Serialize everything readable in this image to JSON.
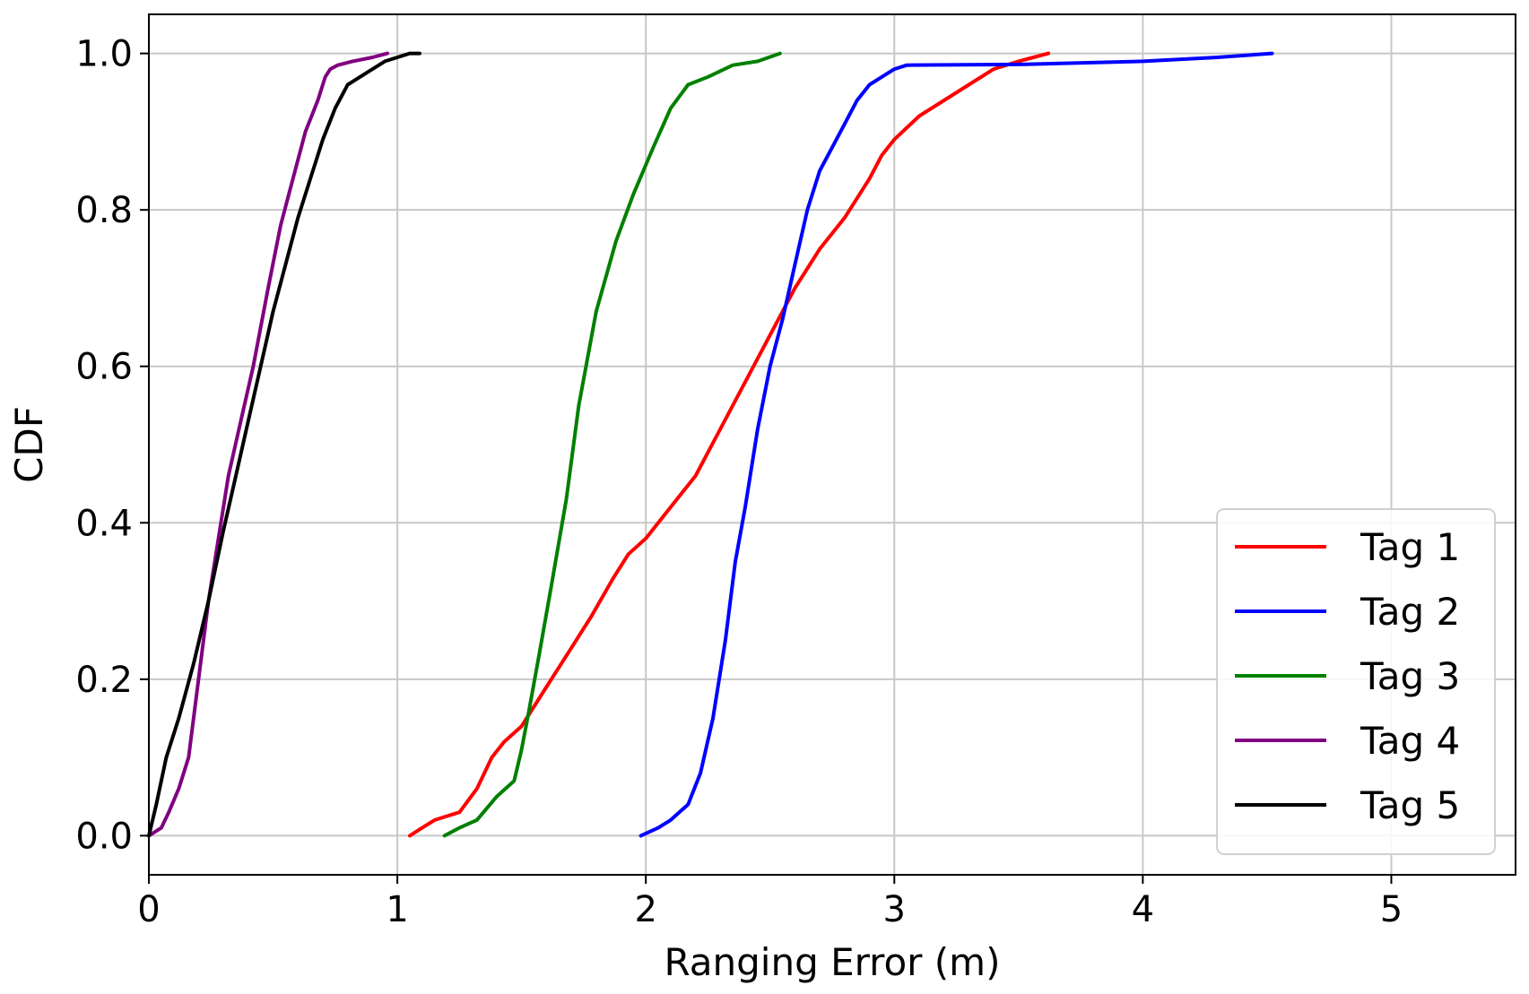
{
  "chart_data": {
    "type": "line",
    "title": "",
    "xlabel": "Ranging Error (m)",
    "ylabel": "CDF",
    "xlim": [
      0,
      5.5
    ],
    "ylim": [
      -0.05,
      1.05
    ],
    "xticks": [
      0,
      1,
      2,
      3,
      4,
      5
    ],
    "yticks": [
      0.0,
      0.2,
      0.4,
      0.6,
      0.8,
      1.0
    ],
    "xtick_labels": [
      "0",
      "1",
      "2",
      "3",
      "4",
      "5"
    ],
    "ytick_labels": [
      "0.0",
      "0.2",
      "0.4",
      "0.6",
      "0.8",
      "1.0"
    ],
    "grid": true,
    "legend_position": "lower-right",
    "series": [
      {
        "name": "Tag 1",
        "color": "#ff0000",
        "x": [
          1.05,
          1.1,
          1.15,
          1.25,
          1.32,
          1.38,
          1.43,
          1.5,
          1.6,
          1.7,
          1.78,
          1.87,
          1.93,
          2.0,
          2.1,
          2.2,
          2.3,
          2.4,
          2.5,
          2.6,
          2.7,
          2.8,
          2.9,
          2.95,
          3.0,
          3.1,
          3.2,
          3.3,
          3.4,
          3.5,
          3.62
        ],
        "y": [
          0.0,
          0.01,
          0.02,
          0.03,
          0.06,
          0.1,
          0.12,
          0.14,
          0.19,
          0.24,
          0.28,
          0.33,
          0.36,
          0.38,
          0.42,
          0.46,
          0.52,
          0.58,
          0.64,
          0.7,
          0.75,
          0.79,
          0.84,
          0.87,
          0.89,
          0.92,
          0.94,
          0.96,
          0.98,
          0.99,
          1.0
        ]
      },
      {
        "name": "Tag 2",
        "color": "#0000ff",
        "x": [
          1.98,
          2.05,
          2.1,
          2.17,
          2.22,
          2.27,
          2.32,
          2.36,
          2.4,
          2.45,
          2.5,
          2.55,
          2.6,
          2.65,
          2.7,
          2.75,
          2.8,
          2.85,
          2.9,
          2.95,
          3.0,
          3.05,
          3.5,
          4.0,
          4.3,
          4.52
        ],
        "y": [
          0.0,
          0.01,
          0.02,
          0.04,
          0.08,
          0.15,
          0.25,
          0.35,
          0.42,
          0.52,
          0.6,
          0.66,
          0.73,
          0.8,
          0.85,
          0.88,
          0.91,
          0.94,
          0.96,
          0.97,
          0.98,
          0.985,
          0.986,
          0.99,
          0.995,
          1.0
        ]
      },
      {
        "name": "Tag 3",
        "color": "#008000",
        "x": [
          1.19,
          1.25,
          1.32,
          1.4,
          1.47,
          1.5,
          1.53,
          1.57,
          1.62,
          1.68,
          1.73,
          1.8,
          1.88,
          1.95,
          2.03,
          2.1,
          2.17,
          2.25,
          2.35,
          2.45,
          2.54
        ],
        "y": [
          0.0,
          0.01,
          0.02,
          0.05,
          0.07,
          0.11,
          0.16,
          0.23,
          0.32,
          0.43,
          0.55,
          0.67,
          0.76,
          0.82,
          0.88,
          0.93,
          0.96,
          0.97,
          0.985,
          0.99,
          1.0
        ]
      },
      {
        "name": "Tag 4",
        "color": "#800080",
        "x": [
          0.0,
          0.05,
          0.08,
          0.12,
          0.16,
          0.2,
          0.24,
          0.28,
          0.32,
          0.37,
          0.42,
          0.48,
          0.53,
          0.58,
          0.63,
          0.68,
          0.71,
          0.73,
          0.76,
          0.82,
          0.9,
          0.96
        ],
        "y": [
          0.0,
          0.01,
          0.03,
          0.06,
          0.1,
          0.2,
          0.3,
          0.38,
          0.46,
          0.53,
          0.6,
          0.7,
          0.78,
          0.84,
          0.9,
          0.94,
          0.97,
          0.98,
          0.985,
          0.99,
          0.995,
          1.0
        ]
      },
      {
        "name": "Tag 5",
        "color": "#000000",
        "x": [
          0.0,
          0.03,
          0.07,
          0.12,
          0.18,
          0.24,
          0.3,
          0.35,
          0.4,
          0.45,
          0.5,
          0.55,
          0.6,
          0.65,
          0.7,
          0.75,
          0.8,
          0.85,
          0.9,
          0.95,
          1.0,
          1.05,
          1.09
        ],
        "y": [
          0.0,
          0.04,
          0.1,
          0.15,
          0.22,
          0.3,
          0.39,
          0.46,
          0.53,
          0.6,
          0.67,
          0.73,
          0.79,
          0.84,
          0.89,
          0.93,
          0.96,
          0.97,
          0.98,
          0.99,
          0.995,
          1.0,
          1.0
        ]
      }
    ]
  }
}
